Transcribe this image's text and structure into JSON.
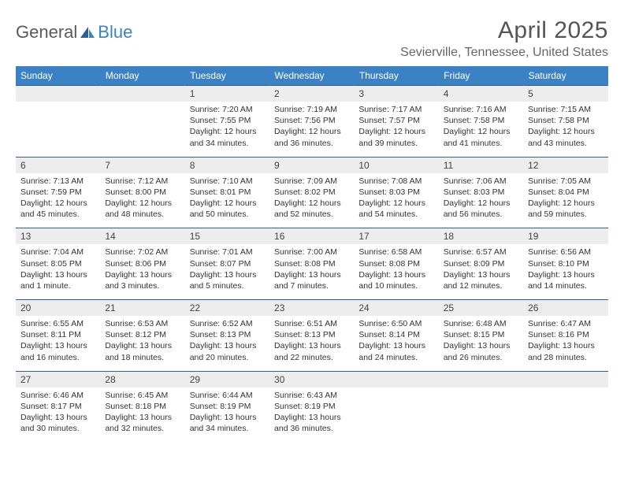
{
  "logo": {
    "general": "General",
    "blue": "Blue"
  },
  "title": "April 2025",
  "location": "Sevierville, Tennessee, United States",
  "colors": {
    "header_bg": "#3b82c4",
    "week_divider": "#2d5f8f",
    "daynum_bg": "#ededed",
    "text": "#333333",
    "title_text": "#555555",
    "logo_gray": "#5a5a5a",
    "logo_blue": "#3b82c4"
  },
  "daysOfWeek": [
    "Sunday",
    "Monday",
    "Tuesday",
    "Wednesday",
    "Thursday",
    "Friday",
    "Saturday"
  ],
  "weeks": [
    [
      {},
      {},
      {
        "n": "1",
        "sr": "Sunrise: 7:20 AM",
        "ss": "Sunset: 7:55 PM",
        "d1": "Daylight: 12 hours",
        "d2": "and 34 minutes."
      },
      {
        "n": "2",
        "sr": "Sunrise: 7:19 AM",
        "ss": "Sunset: 7:56 PM",
        "d1": "Daylight: 12 hours",
        "d2": "and 36 minutes."
      },
      {
        "n": "3",
        "sr": "Sunrise: 7:17 AM",
        "ss": "Sunset: 7:57 PM",
        "d1": "Daylight: 12 hours",
        "d2": "and 39 minutes."
      },
      {
        "n": "4",
        "sr": "Sunrise: 7:16 AM",
        "ss": "Sunset: 7:58 PM",
        "d1": "Daylight: 12 hours",
        "d2": "and 41 minutes."
      },
      {
        "n": "5",
        "sr": "Sunrise: 7:15 AM",
        "ss": "Sunset: 7:58 PM",
        "d1": "Daylight: 12 hours",
        "d2": "and 43 minutes."
      }
    ],
    [
      {
        "n": "6",
        "sr": "Sunrise: 7:13 AM",
        "ss": "Sunset: 7:59 PM",
        "d1": "Daylight: 12 hours",
        "d2": "and 45 minutes."
      },
      {
        "n": "7",
        "sr": "Sunrise: 7:12 AM",
        "ss": "Sunset: 8:00 PM",
        "d1": "Daylight: 12 hours",
        "d2": "and 48 minutes."
      },
      {
        "n": "8",
        "sr": "Sunrise: 7:10 AM",
        "ss": "Sunset: 8:01 PM",
        "d1": "Daylight: 12 hours",
        "d2": "and 50 minutes."
      },
      {
        "n": "9",
        "sr": "Sunrise: 7:09 AM",
        "ss": "Sunset: 8:02 PM",
        "d1": "Daylight: 12 hours",
        "d2": "and 52 minutes."
      },
      {
        "n": "10",
        "sr": "Sunrise: 7:08 AM",
        "ss": "Sunset: 8:03 PM",
        "d1": "Daylight: 12 hours",
        "d2": "and 54 minutes."
      },
      {
        "n": "11",
        "sr": "Sunrise: 7:06 AM",
        "ss": "Sunset: 8:03 PM",
        "d1": "Daylight: 12 hours",
        "d2": "and 56 minutes."
      },
      {
        "n": "12",
        "sr": "Sunrise: 7:05 AM",
        "ss": "Sunset: 8:04 PM",
        "d1": "Daylight: 12 hours",
        "d2": "and 59 minutes."
      }
    ],
    [
      {
        "n": "13",
        "sr": "Sunrise: 7:04 AM",
        "ss": "Sunset: 8:05 PM",
        "d1": "Daylight: 13 hours",
        "d2": "and 1 minute."
      },
      {
        "n": "14",
        "sr": "Sunrise: 7:02 AM",
        "ss": "Sunset: 8:06 PM",
        "d1": "Daylight: 13 hours",
        "d2": "and 3 minutes."
      },
      {
        "n": "15",
        "sr": "Sunrise: 7:01 AM",
        "ss": "Sunset: 8:07 PM",
        "d1": "Daylight: 13 hours",
        "d2": "and 5 minutes."
      },
      {
        "n": "16",
        "sr": "Sunrise: 7:00 AM",
        "ss": "Sunset: 8:08 PM",
        "d1": "Daylight: 13 hours",
        "d2": "and 7 minutes."
      },
      {
        "n": "17",
        "sr": "Sunrise: 6:58 AM",
        "ss": "Sunset: 8:08 PM",
        "d1": "Daylight: 13 hours",
        "d2": "and 10 minutes."
      },
      {
        "n": "18",
        "sr": "Sunrise: 6:57 AM",
        "ss": "Sunset: 8:09 PM",
        "d1": "Daylight: 13 hours",
        "d2": "and 12 minutes."
      },
      {
        "n": "19",
        "sr": "Sunrise: 6:56 AM",
        "ss": "Sunset: 8:10 PM",
        "d1": "Daylight: 13 hours",
        "d2": "and 14 minutes."
      }
    ],
    [
      {
        "n": "20",
        "sr": "Sunrise: 6:55 AM",
        "ss": "Sunset: 8:11 PM",
        "d1": "Daylight: 13 hours",
        "d2": "and 16 minutes."
      },
      {
        "n": "21",
        "sr": "Sunrise: 6:53 AM",
        "ss": "Sunset: 8:12 PM",
        "d1": "Daylight: 13 hours",
        "d2": "and 18 minutes."
      },
      {
        "n": "22",
        "sr": "Sunrise: 6:52 AM",
        "ss": "Sunset: 8:13 PM",
        "d1": "Daylight: 13 hours",
        "d2": "and 20 minutes."
      },
      {
        "n": "23",
        "sr": "Sunrise: 6:51 AM",
        "ss": "Sunset: 8:13 PM",
        "d1": "Daylight: 13 hours",
        "d2": "and 22 minutes."
      },
      {
        "n": "24",
        "sr": "Sunrise: 6:50 AM",
        "ss": "Sunset: 8:14 PM",
        "d1": "Daylight: 13 hours",
        "d2": "and 24 minutes."
      },
      {
        "n": "25",
        "sr": "Sunrise: 6:48 AM",
        "ss": "Sunset: 8:15 PM",
        "d1": "Daylight: 13 hours",
        "d2": "and 26 minutes."
      },
      {
        "n": "26",
        "sr": "Sunrise: 6:47 AM",
        "ss": "Sunset: 8:16 PM",
        "d1": "Daylight: 13 hours",
        "d2": "and 28 minutes."
      }
    ],
    [
      {
        "n": "27",
        "sr": "Sunrise: 6:46 AM",
        "ss": "Sunset: 8:17 PM",
        "d1": "Daylight: 13 hours",
        "d2": "and 30 minutes."
      },
      {
        "n": "28",
        "sr": "Sunrise: 6:45 AM",
        "ss": "Sunset: 8:18 PM",
        "d1": "Daylight: 13 hours",
        "d2": "and 32 minutes."
      },
      {
        "n": "29",
        "sr": "Sunrise: 6:44 AM",
        "ss": "Sunset: 8:19 PM",
        "d1": "Daylight: 13 hours",
        "d2": "and 34 minutes."
      },
      {
        "n": "30",
        "sr": "Sunrise: 6:43 AM",
        "ss": "Sunset: 8:19 PM",
        "d1": "Daylight: 13 hours",
        "d2": "and 36 minutes."
      },
      {},
      {},
      {}
    ]
  ]
}
